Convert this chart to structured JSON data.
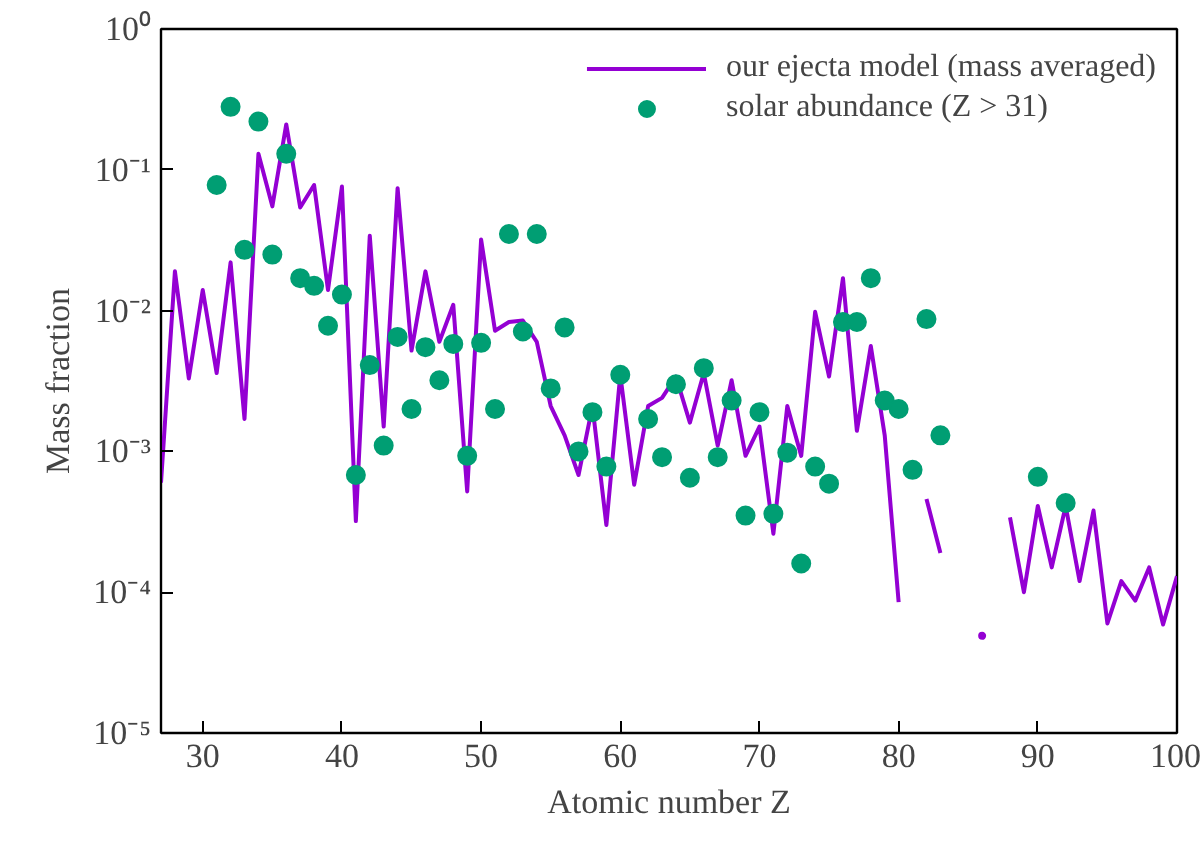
{
  "chart_data": {
    "type": "line",
    "xlabel": "Atomic number Z",
    "ylabel": "Mass fraction",
    "log": "y",
    "legend": "top right",
    "grid": false,
    "xlim": [
      27,
      100
    ],
    "xticks": [
      30,
      40,
      50,
      60,
      70,
      80,
      90,
      100
    ],
    "ylim": [
      1e-05,
      1
    ],
    "yticks": [
      {
        "value": 1,
        "label": "10⁰"
      },
      {
        "value": 0.1,
        "label": "10⁻¹"
      },
      {
        "value": 0.01,
        "label": "10⁻²"
      },
      {
        "value": 0.001,
        "label": "10⁻³"
      },
      {
        "value": 0.0001,
        "label": "10⁻⁴"
      },
      {
        "value": 1e-05,
        "label": "10⁻⁵"
      }
    ],
    "series": [
      {
        "name": "our ejecta model (mass averaged)",
        "color": "#9400d3",
        "marker": "none",
        "x": [
          27,
          28,
          29,
          30,
          31,
          32,
          33,
          34,
          35,
          36,
          37,
          38,
          39,
          40,
          41,
          42,
          43,
          44,
          45,
          46,
          47,
          48,
          49,
          50,
          51,
          52,
          53,
          54,
          55,
          56,
          57,
          58,
          59,
          60,
          61,
          62,
          63,
          64,
          65,
          66,
          67,
          68,
          69,
          70,
          71,
          72,
          73,
          74,
          75,
          76,
          77,
          78,
          79,
          80,
          81,
          82,
          83,
          84,
          85,
          86,
          87,
          88,
          89,
          90,
          91,
          92,
          93,
          94,
          95,
          96,
          97,
          98,
          99,
          100
        ],
        "values": [
          0.0006,
          0.019,
          0.0033,
          0.014,
          0.0036,
          0.022,
          0.0017,
          0.13,
          0.055,
          0.21,
          0.054,
          0.078,
          0.014,
          0.076,
          0.00032,
          0.034,
          0.0015,
          0.074,
          0.0052,
          0.019,
          0.006,
          0.011,
          0.00052,
          0.032,
          0.0072,
          0.0083,
          0.0085,
          0.006,
          0.0021,
          0.0013,
          0.00068,
          0.0021,
          0.0003,
          0.0035,
          0.00058,
          0.0021,
          0.0024,
          0.0034,
          0.0016,
          0.0036,
          0.0011,
          0.0032,
          0.00093,
          0.0015,
          0.00026,
          0.0021,
          0.00093,
          0.0098,
          0.0034,
          0.017,
          0.0014,
          0.0056,
          0.0013,
          8.5e-05,
          null,
          0.00046,
          0.00019,
          null,
          null,
          4.9e-05,
          null,
          0.00034,
          0.0001,
          0.00041,
          0.00015,
          0.00041,
          0.00012,
          0.00038,
          6e-05,
          0.00012,
          8.7e-05,
          0.00015,
          5.9e-05,
          0.00013
        ]
      },
      {
        "name": "solar abundance (Z > 31)",
        "type": "scatter",
        "color": "#009e73",
        "marker": "circle",
        "x": [
          31,
          32,
          33,
          34,
          35,
          36,
          37,
          38,
          39,
          40,
          41,
          42,
          43,
          44,
          45,
          46,
          47,
          48,
          49,
          50,
          51,
          52,
          53,
          54,
          55,
          56,
          57,
          58,
          59,
          60,
          62,
          63,
          64,
          65,
          66,
          67,
          68,
          69,
          70,
          71,
          72,
          73,
          74,
          75,
          76,
          77,
          78,
          79,
          80,
          81,
          82,
          83,
          90,
          92
        ],
        "values": [
          0.078,
          0.28,
          0.027,
          0.22,
          0.025,
          0.13,
          0.017,
          0.015,
          0.0078,
          0.013,
          0.00068,
          0.0041,
          0.0011,
          0.0065,
          0.002,
          0.0055,
          0.0032,
          0.0058,
          0.00093,
          0.0059,
          0.002,
          0.035,
          0.0071,
          0.035,
          0.0028,
          0.0076,
          0.001,
          0.0019,
          0.00078,
          0.0035,
          0.0017,
          0.00091,
          0.003,
          0.00065,
          0.0039,
          0.00091,
          0.0023,
          0.00035,
          0.0019,
          0.00036,
          0.00098,
          0.00016,
          0.00078,
          0.00059,
          0.0083,
          0.0083,
          0.017,
          0.0023,
          0.002,
          0.00074,
          0.0087,
          0.0013,
          0.00066,
          0.00043
        ]
      }
    ]
  }
}
